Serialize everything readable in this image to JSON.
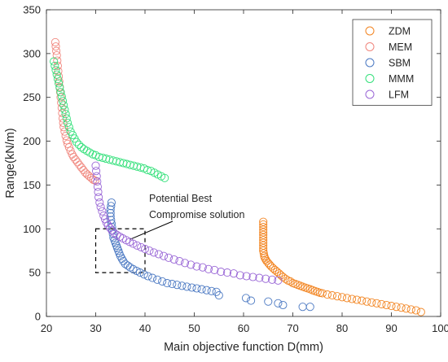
{
  "chart_data": {
    "type": "scatter",
    "title": "",
    "xlabel": "Main objective function D(mm)",
    "ylabel": "Range(kN/m)",
    "xlim": [
      20,
      100
    ],
    "ylim": [
      0,
      350
    ],
    "xticks": [
      "20",
      "30",
      "40",
      "50",
      "60",
      "70",
      "80",
      "90",
      "100"
    ],
    "yticks": [
      "0",
      "50",
      "100",
      "150",
      "200",
      "250",
      "300",
      "350"
    ],
    "grid": false,
    "legend_position": "top-right",
    "annotation": {
      "lines": [
        "Potential Best",
        "Compromise solution"
      ],
      "box_x": [
        30,
        40
      ],
      "box_y": [
        50,
        100
      ],
      "arrow_to": [
        37,
        88
      ]
    },
    "series": [
      {
        "name": "ZDM",
        "color": "#f28522",
        "points": [
          [
            64.0,
            108
          ],
          [
            64.0,
            105
          ],
          [
            64.0,
            102
          ],
          [
            64.0,
            99
          ],
          [
            64.0,
            96
          ],
          [
            64.0,
            93
          ],
          [
            64.0,
            90
          ],
          [
            64.0,
            87
          ],
          [
            64.0,
            84
          ],
          [
            64.0,
            81
          ],
          [
            64.0,
            78
          ],
          [
            64.0,
            75
          ],
          [
            64.1,
            72
          ],
          [
            64.2,
            69
          ],
          [
            64.3,
            67
          ],
          [
            64.5,
            65
          ],
          [
            64.7,
            63
          ],
          [
            65.0,
            61
          ],
          [
            65.3,
            59
          ],
          [
            65.6,
            57
          ],
          [
            66.0,
            55
          ],
          [
            66.4,
            53
          ],
          [
            66.8,
            51
          ],
          [
            67.2,
            49
          ],
          [
            67.6,
            47
          ],
          [
            68.0,
            45
          ],
          [
            68.5,
            43
          ],
          [
            69.0,
            41
          ],
          [
            69.5,
            40
          ],
          [
            70.0,
            38
          ],
          [
            70.5,
            37
          ],
          [
            71.0,
            36
          ],
          [
            71.5,
            35
          ],
          [
            72.0,
            34
          ],
          [
            72.5,
            33
          ],
          [
            73.0,
            32
          ],
          [
            73.5,
            31
          ],
          [
            74.0,
            30
          ],
          [
            74.5,
            29
          ],
          [
            75.0,
            28
          ],
          [
            75.5,
            27
          ],
          [
            76.0,
            26.5
          ],
          [
            77.0,
            25
          ],
          [
            78.0,
            24
          ],
          [
            79.0,
            23
          ],
          [
            80.0,
            22
          ],
          [
            81.0,
            21
          ],
          [
            82.0,
            20
          ],
          [
            83.0,
            19
          ],
          [
            84.0,
            18
          ],
          [
            85.0,
            17
          ],
          [
            86.0,
            16
          ],
          [
            87.0,
            15
          ],
          [
            88.0,
            14
          ],
          [
            89.0,
            13
          ],
          [
            90.0,
            12
          ],
          [
            91.0,
            11
          ],
          [
            92.0,
            10
          ],
          [
            93.0,
            9
          ],
          [
            94.0,
            8
          ],
          [
            95.0,
            7
          ],
          [
            96.0,
            5
          ]
        ]
      },
      {
        "name": "MEM",
        "color": "#f0857c",
        "points": [
          [
            21.8,
            313
          ],
          [
            21.9,
            308
          ],
          [
            22.0,
            303
          ],
          [
            22.1,
            298
          ],
          [
            22.2,
            292
          ],
          [
            22.3,
            286
          ],
          [
            22.4,
            280
          ],
          [
            22.5,
            274
          ],
          [
            22.6,
            268
          ],
          [
            22.7,
            262
          ],
          [
            22.8,
            256
          ],
          [
            22.9,
            250
          ],
          [
            23.0,
            244
          ],
          [
            23.1,
            238
          ],
          [
            23.2,
            232
          ],
          [
            23.3,
            226
          ],
          [
            23.4,
            221
          ],
          [
            23.5,
            216
          ],
          [
            23.7,
            211
          ],
          [
            23.9,
            206
          ],
          [
            24.1,
            201
          ],
          [
            24.3,
            197
          ],
          [
            24.6,
            193
          ],
          [
            24.9,
            189
          ],
          [
            25.2,
            185
          ],
          [
            25.5,
            182
          ],
          [
            25.9,
            179
          ],
          [
            26.3,
            176
          ],
          [
            26.7,
            173
          ],
          [
            27.1,
            170
          ],
          [
            27.5,
            167
          ],
          [
            27.9,
            164
          ],
          [
            28.3,
            162
          ],
          [
            28.7,
            160
          ],
          [
            29.1,
            158
          ],
          [
            29.5,
            156
          ],
          [
            29.9,
            155
          ]
        ]
      },
      {
        "name": "SBM",
        "color": "#4a78c2",
        "points": [
          [
            33.2,
            130
          ],
          [
            33.1,
            126
          ],
          [
            33.0,
            122
          ],
          [
            33.0,
            118
          ],
          [
            33.0,
            114
          ],
          [
            33.1,
            110
          ],
          [
            33.2,
            106
          ],
          [
            33.3,
            102
          ],
          [
            33.4,
            98
          ],
          [
            33.5,
            94
          ],
          [
            33.6,
            90
          ],
          [
            33.8,
            87
          ],
          [
            34.0,
            84
          ],
          [
            34.2,
            81
          ],
          [
            34.4,
            78
          ],
          [
            34.6,
            75
          ],
          [
            34.8,
            72
          ],
          [
            35.0,
            69
          ],
          [
            35.3,
            66
          ],
          [
            35.6,
            63
          ],
          [
            36.0,
            60
          ],
          [
            36.5,
            58
          ],
          [
            37.0,
            56
          ],
          [
            37.6,
            54
          ],
          [
            38.3,
            52
          ],
          [
            39.0,
            50
          ],
          [
            39.8,
            48
          ],
          [
            40.6,
            46
          ],
          [
            41.5,
            44
          ],
          [
            42.5,
            42
          ],
          [
            43.5,
            40
          ],
          [
            44.5,
            38
          ],
          [
            45.5,
            37
          ],
          [
            46.5,
            36
          ],
          [
            47.5,
            35
          ],
          [
            48.5,
            34
          ],
          [
            49.5,
            33
          ],
          [
            50.5,
            32
          ],
          [
            51.5,
            31
          ],
          [
            52.5,
            30
          ],
          [
            53.5,
            29
          ],
          [
            54.5,
            28
          ],
          [
            55.0,
            24
          ],
          [
            60.5,
            21
          ],
          [
            61.5,
            18
          ],
          [
            65.0,
            17
          ],
          [
            67.0,
            15
          ],
          [
            68.0,
            13
          ],
          [
            72.0,
            11
          ],
          [
            73.5,
            11
          ]
        ]
      },
      {
        "name": "MMM",
        "color": "#33e07a",
        "points": [
          [
            21.5,
            291
          ],
          [
            21.7,
            286
          ],
          [
            21.9,
            281
          ],
          [
            22.1,
            276
          ],
          [
            22.3,
            271
          ],
          [
            22.5,
            266
          ],
          [
            22.7,
            261
          ],
          [
            22.9,
            256
          ],
          [
            23.1,
            251
          ],
          [
            23.3,
            246
          ],
          [
            23.5,
            241
          ],
          [
            23.7,
            236
          ],
          [
            23.9,
            231
          ],
          [
            24.1,
            226
          ],
          [
            24.3,
            221
          ],
          [
            24.6,
            216
          ],
          [
            24.9,
            211
          ],
          [
            25.3,
            207
          ],
          [
            25.7,
            203
          ],
          [
            26.1,
            199
          ],
          [
            26.6,
            196
          ],
          [
            27.1,
            193
          ],
          [
            27.6,
            191
          ],
          [
            28.2,
            189
          ],
          [
            28.8,
            187
          ],
          [
            29.4,
            185
          ],
          [
            30.0,
            184
          ],
          [
            30.7,
            182
          ],
          [
            31.4,
            181
          ],
          [
            32.1,
            180
          ],
          [
            32.8,
            179
          ],
          [
            33.5,
            178
          ],
          [
            34.2,
            177
          ],
          [
            34.9,
            176
          ],
          [
            35.6,
            175
          ],
          [
            36.3,
            174
          ],
          [
            37.0,
            173
          ],
          [
            37.7,
            172
          ],
          [
            38.4,
            171
          ],
          [
            39.1,
            170
          ],
          [
            39.8,
            169
          ],
          [
            40.5,
            167
          ],
          [
            41.2,
            166
          ],
          [
            41.9,
            164
          ],
          [
            42.6,
            162
          ],
          [
            43.3,
            160
          ],
          [
            44.0,
            158
          ]
        ]
      },
      {
        "name": "LFM",
        "color": "#9966d6",
        "points": [
          [
            30.0,
            172
          ],
          [
            30.1,
            166
          ],
          [
            30.2,
            160
          ],
          [
            30.3,
            154
          ],
          [
            30.4,
            148
          ],
          [
            30.5,
            142
          ],
          [
            30.6,
            136
          ],
          [
            30.8,
            130
          ],
          [
            31.0,
            125
          ],
          [
            31.3,
            120
          ],
          [
            31.6,
            115
          ],
          [
            31.9,
            111
          ],
          [
            32.2,
            107
          ],
          [
            32.5,
            104
          ],
          [
            32.9,
            101
          ],
          [
            33.3,
            98
          ],
          [
            33.8,
            95
          ],
          [
            34.3,
            93
          ],
          [
            34.9,
            91
          ],
          [
            35.5,
            89
          ],
          [
            36.2,
            87
          ],
          [
            36.9,
            85
          ],
          [
            37.6,
            83
          ],
          [
            38.4,
            81
          ],
          [
            39.2,
            79
          ],
          [
            40.0,
            77
          ],
          [
            40.9,
            75
          ],
          [
            41.8,
            73
          ],
          [
            42.8,
            71
          ],
          [
            43.8,
            69
          ],
          [
            44.8,
            67
          ],
          [
            45.9,
            65
          ],
          [
            47.0,
            63
          ],
          [
            48.1,
            61
          ],
          [
            49.3,
            59
          ],
          [
            50.5,
            57
          ],
          [
            51.7,
            56
          ],
          [
            52.9,
            54
          ],
          [
            54.1,
            53
          ],
          [
            55.4,
            51
          ],
          [
            56.7,
            50
          ],
          [
            58.0,
            49
          ],
          [
            59.3,
            47
          ],
          [
            60.6,
            46
          ],
          [
            61.9,
            45
          ],
          [
            63.2,
            44
          ],
          [
            64.5,
            43
          ],
          [
            65.8,
            42
          ],
          [
            67.0,
            41
          ]
        ]
      }
    ]
  }
}
